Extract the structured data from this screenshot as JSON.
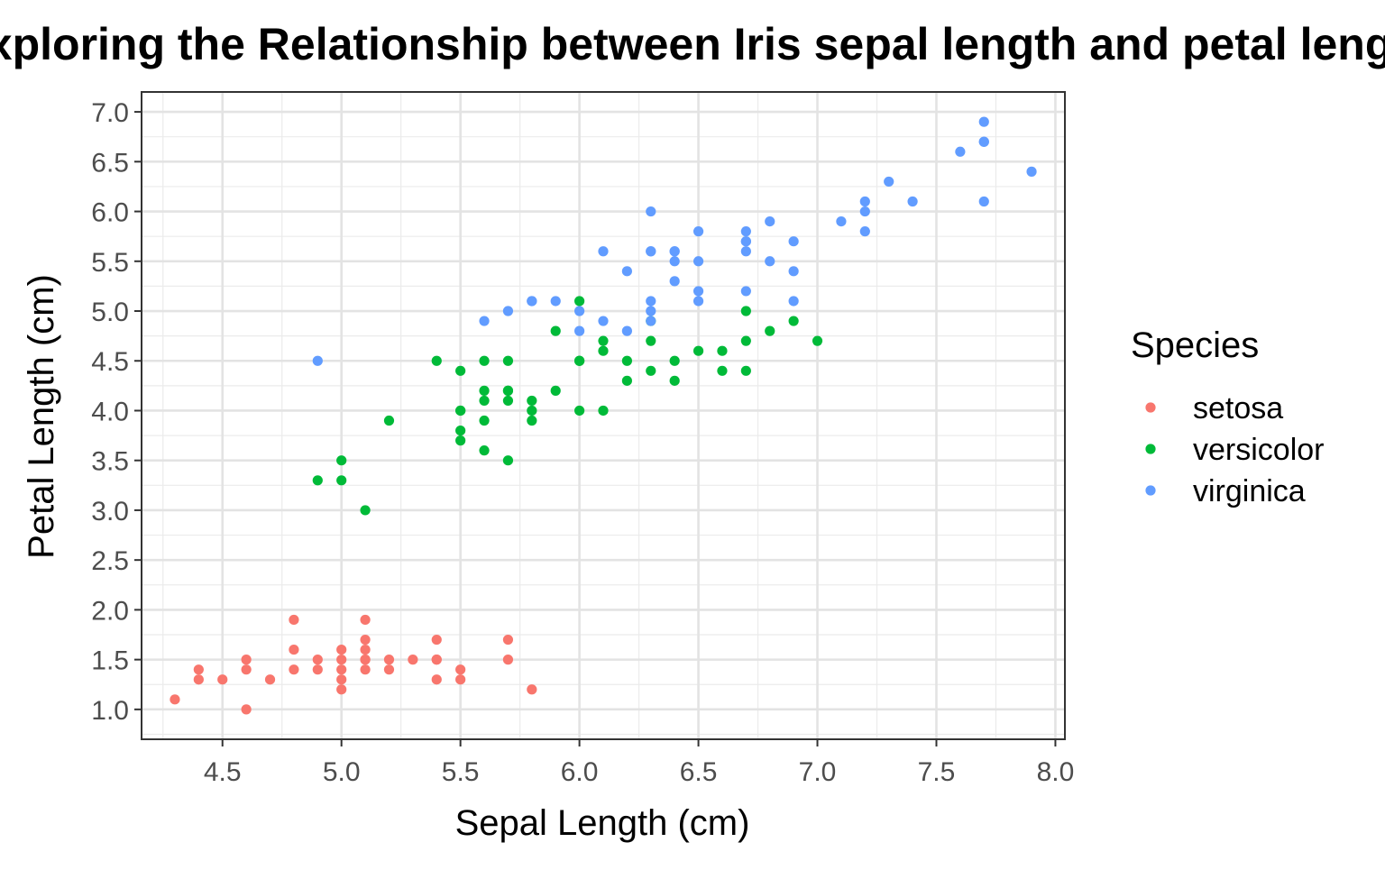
{
  "chart_data": {
    "type": "scatter",
    "title": "Exploring the Relationship between Iris sepal length and petal length",
    "xlabel": "Sepal Length (cm)",
    "ylabel": "Petal Length (cm)",
    "xlim": [
      4.16,
      8.04
    ],
    "ylim": [
      0.7,
      7.2
    ],
    "xticks": [
      "4.5",
      "5.0",
      "5.5",
      "6.0",
      "6.5",
      "7.0",
      "7.5",
      "8.0"
    ],
    "yticks": [
      "1.0",
      "1.5",
      "2.0",
      "2.5",
      "3.0",
      "3.5",
      "4.0",
      "4.5",
      "5.0",
      "5.5",
      "6.0",
      "6.5",
      "7.0"
    ],
    "grid": true,
    "legend": {
      "title": "Species",
      "position": "right"
    },
    "series": [
      {
        "name": "setosa",
        "color": "#F8766D",
        "x": [
          4.3,
          4.4,
          4.4,
          4.5,
          4.6,
          4.6,
          4.6,
          4.7,
          4.8,
          4.8,
          4.8,
          4.9,
          4.9,
          5.0,
          5.0,
          5.0,
          5.0,
          5.0,
          5.1,
          5.1,
          5.1,
          5.1,
          5.1,
          5.1,
          5.2,
          5.2,
          5.3,
          5.4,
          5.4,
          5.4,
          5.4,
          5.5,
          5.5,
          5.7,
          5.7,
          5.8
        ],
        "y": [
          1.1,
          1.4,
          1.3,
          1.3,
          1.0,
          1.4,
          1.5,
          1.3,
          1.9,
          1.6,
          1.4,
          1.5,
          1.4,
          1.6,
          1.5,
          1.4,
          1.3,
          1.2,
          1.9,
          1.7,
          1.6,
          1.5,
          1.4,
          1.5,
          1.5,
          1.4,
          1.5,
          1.7,
          1.5,
          1.5,
          1.3,
          1.4,
          1.3,
          1.7,
          1.5,
          1.2
        ]
      },
      {
        "name": "versicolor",
        "color": "#00BA38",
        "x": [
          4.9,
          5.0,
          5.0,
          5.1,
          5.2,
          5.4,
          5.5,
          5.5,
          5.5,
          5.5,
          5.5,
          5.6,
          5.6,
          5.6,
          5.6,
          5.6,
          5.7,
          5.7,
          5.7,
          5.7,
          5.7,
          5.8,
          5.8,
          5.8,
          5.9,
          5.9,
          6.0,
          6.0,
          6.0,
          6.0,
          6.1,
          6.1,
          6.1,
          6.2,
          6.2,
          6.3,
          6.3,
          6.3,
          6.4,
          6.4,
          6.5,
          6.6,
          6.6,
          6.7,
          6.7,
          6.7,
          6.8,
          6.9,
          7.0
        ],
        "y": [
          3.3,
          3.5,
          3.3,
          3.0,
          3.9,
          4.5,
          4.4,
          4.0,
          3.8,
          3.7,
          4.0,
          4.5,
          4.2,
          4.1,
          3.9,
          3.6,
          4.5,
          4.2,
          4.1,
          3.5,
          4.2,
          4.1,
          4.0,
          3.9,
          4.8,
          4.2,
          5.1,
          4.5,
          4.0,
          4.5,
          4.7,
          4.6,
          4.0,
          4.5,
          4.3,
          4.7,
          4.4,
          4.9,
          4.5,
          4.3,
          4.6,
          4.6,
          4.4,
          5.0,
          4.7,
          4.4,
          4.8,
          4.9,
          4.7
        ]
      },
      {
        "name": "virginica",
        "color": "#619CFF",
        "x": [
          4.9,
          5.6,
          5.7,
          5.8,
          5.8,
          5.9,
          6.0,
          6.0,
          6.1,
          6.1,
          6.2,
          6.2,
          6.3,
          6.3,
          6.3,
          6.3,
          6.3,
          6.3,
          6.4,
          6.4,
          6.4,
          6.4,
          6.5,
          6.5,
          6.5,
          6.5,
          6.7,
          6.7,
          6.7,
          6.7,
          6.7,
          6.8,
          6.8,
          6.9,
          6.9,
          6.9,
          7.1,
          7.2,
          7.2,
          7.2,
          7.3,
          7.4,
          7.6,
          7.7,
          7.7,
          7.7,
          7.7,
          7.9
        ],
        "y": [
          4.5,
          4.9,
          5.0,
          5.1,
          5.1,
          5.1,
          5.0,
          4.8,
          5.6,
          4.9,
          5.4,
          4.8,
          6.0,
          5.6,
          5.1,
          5.0,
          4.9,
          5.6,
          5.6,
          5.5,
          5.3,
          5.6,
          5.8,
          5.5,
          5.2,
          5.1,
          5.8,
          5.7,
          5.6,
          5.2,
          5.7,
          5.9,
          5.5,
          5.7,
          5.4,
          5.1,
          5.9,
          6.1,
          6.0,
          5.8,
          6.3,
          6.1,
          6.6,
          6.9,
          6.7,
          6.7,
          6.1,
          6.4
        ]
      }
    ]
  }
}
